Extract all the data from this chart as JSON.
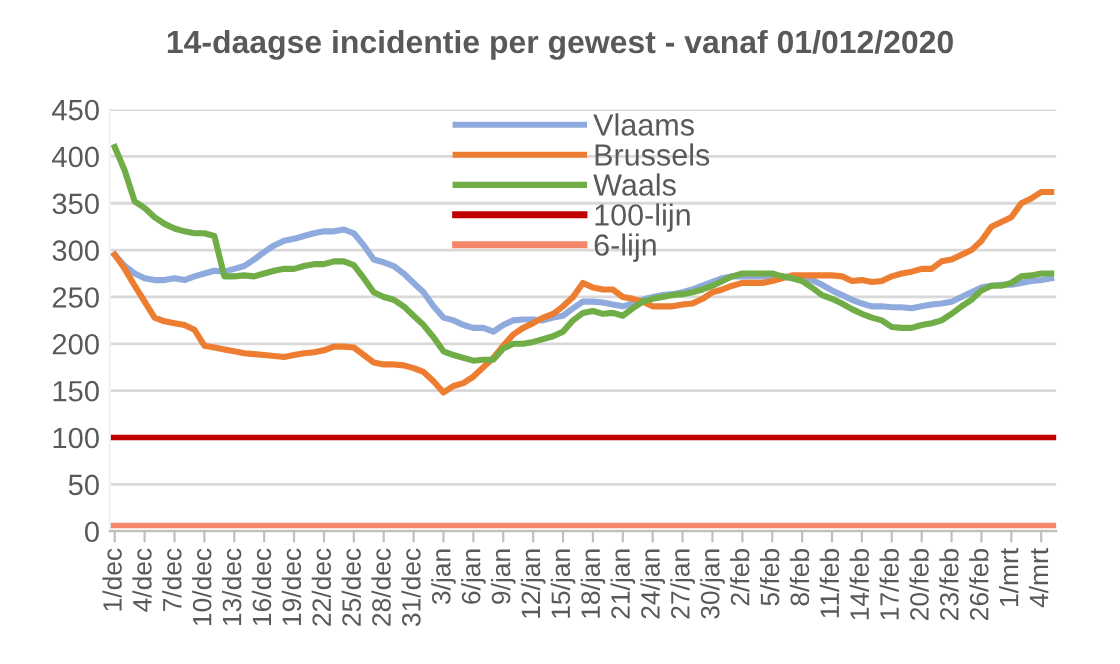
{
  "chart_data": {
    "type": "line",
    "title": "14-daagse incidentie per gewest - vanaf 01/012/2020",
    "categories": [
      "1/dec",
      null,
      null,
      "4/dec",
      null,
      null,
      "7/dec",
      null,
      null,
      "10/dec",
      null,
      null,
      "13/dec",
      null,
      null,
      "16/dec",
      null,
      null,
      "19/dec",
      null,
      null,
      "22/dec",
      null,
      null,
      "25/dec",
      null,
      null,
      "28/dec",
      null,
      null,
      "31/dec",
      null,
      null,
      "3/jan",
      null,
      null,
      "6/jan",
      null,
      null,
      "9/jan",
      null,
      null,
      "12/jan",
      null,
      null,
      "15/jan",
      null,
      null,
      "18/jan",
      null,
      null,
      "21/jan",
      null,
      null,
      "24/jan",
      null,
      null,
      "27/jan",
      null,
      null,
      "30/jan",
      null,
      null,
      "2/feb",
      null,
      null,
      "5/feb",
      null,
      null,
      "8/feb",
      null,
      null,
      "11/feb",
      null,
      null,
      "14/feb",
      null,
      null,
      "17/feb",
      null,
      null,
      "20/feb",
      null,
      null,
      "23/feb",
      null,
      null,
      "26/feb",
      null,
      null,
      "1/mrt",
      null,
      null,
      "4/mrt",
      null
    ],
    "series": [
      {
        "name": "Vlaams",
        "color": "#8faadc",
        "values": [
          295,
          283,
          275,
          270,
          268,
          268,
          270,
          268,
          272,
          275,
          278,
          277,
          280,
          283,
          290,
          298,
          305,
          310,
          312,
          315,
          318,
          320,
          320,
          322,
          318,
          305,
          290,
          287,
          283,
          275,
          265,
          255,
          240,
          228,
          225,
          220,
          217,
          217,
          213,
          220,
          225,
          226,
          226,
          225,
          228,
          230,
          238,
          245,
          245,
          244,
          242,
          240,
          243,
          247,
          250,
          252,
          253,
          255,
          258,
          262,
          266,
          270,
          272,
          272,
          272,
          272,
          272,
          272,
          270,
          270,
          268,
          263,
          257,
          252,
          247,
          243,
          240,
          240,
          239,
          239,
          238,
          240,
          242,
          243,
          245,
          250,
          255,
          260,
          262,
          263,
          263,
          265,
          267,
          268,
          270
        ]
      },
      {
        "name": "Brussels",
        "color": "#ed7d31",
        "values": [
          295,
          280,
          262,
          245,
          228,
          224,
          222,
          220,
          215,
          198,
          196,
          194,
          192,
          190,
          189,
          188,
          187,
          186,
          188,
          190,
          191,
          193,
          197,
          197,
          196,
          188,
          180,
          178,
          178,
          177,
          174,
          170,
          160,
          148,
          155,
          158,
          165,
          175,
          185,
          198,
          210,
          217,
          222,
          228,
          232,
          240,
          250,
          265,
          260,
          258,
          258,
          250,
          248,
          245,
          240,
          240,
          240,
          242,
          243,
          248,
          255,
          258,
          262,
          265,
          265,
          265,
          267,
          270,
          273,
          273,
          273,
          273,
          273,
          272,
          267,
          268,
          266,
          267,
          272,
          275,
          277,
          280,
          280,
          288,
          290,
          295,
          300,
          310,
          325,
          330,
          335,
          350,
          355,
          362,
          362
        ]
      },
      {
        "name": "Waals",
        "color": "#70ad47",
        "values": [
          410,
          385,
          352,
          345,
          335,
          328,
          323,
          320,
          318,
          318,
          315,
          272,
          272,
          273,
          272,
          275,
          278,
          280,
          280,
          283,
          285,
          285,
          288,
          288,
          284,
          270,
          255,
          250,
          247,
          240,
          230,
          220,
          207,
          192,
          188,
          185,
          182,
          183,
          183,
          195,
          200,
          200,
          202,
          205,
          208,
          213,
          225,
          233,
          235,
          232,
          233,
          230,
          238,
          245,
          248,
          250,
          252,
          253,
          255,
          258,
          262,
          267,
          272,
          275,
          275,
          275,
          275,
          272,
          270,
          267,
          260,
          252,
          248,
          243,
          237,
          232,
          228,
          225,
          218,
          217,
          217,
          220,
          222,
          225,
          232,
          240,
          247,
          257,
          262,
          262,
          265,
          272,
          273,
          275,
          275
        ]
      }
    ],
    "ref_lines": [
      {
        "axis": "y",
        "value": 100,
        "label": "100-lijn",
        "color": "#c00000"
      },
      {
        "axis": "y",
        "value": 6,
        "label": "6-lijn",
        "color": "#f4876a"
      }
    ],
    "ylim": [
      0,
      450
    ],
    "yticks": [
      0,
      50,
      100,
      150,
      200,
      250,
      300,
      350,
      400,
      450
    ],
    "grid": "y",
    "legend": "top",
    "marker": "none",
    "line_style": "solid"
  }
}
